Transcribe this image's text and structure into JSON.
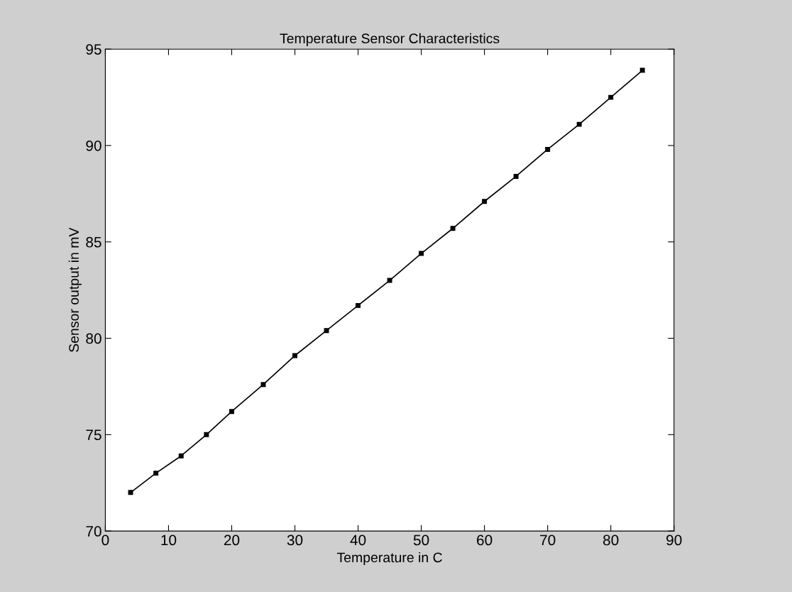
{
  "chart_data": {
    "type": "line",
    "title": "Temperature Sensor Characteristics",
    "xlabel": "Temperature in C",
    "ylabel": "Sensor output in mV",
    "x": [
      4,
      8,
      12,
      16,
      20,
      25,
      30,
      35,
      40,
      45,
      50,
      55,
      60,
      65,
      70,
      75,
      80,
      85
    ],
    "series": [
      {
        "color": "#000000",
        "values": [
          72.0,
          73.0,
          73.9,
          75.0,
          76.2,
          77.6,
          79.1,
          80.4,
          81.7,
          83.0,
          84.4,
          85.7,
          87.1,
          88.4,
          89.8,
          91.1,
          92.5,
          93.9
        ]
      }
    ],
    "xlim": [
      0,
      90
    ],
    "xticks": [
      0,
      10,
      20,
      30,
      40,
      50,
      60,
      70,
      80,
      90
    ],
    "ylim": [
      70,
      95
    ],
    "yticks": [
      70,
      75,
      80,
      85,
      90,
      95
    ],
    "marker": "square",
    "line_style": "solid",
    "grid": false,
    "legend": false
  }
}
